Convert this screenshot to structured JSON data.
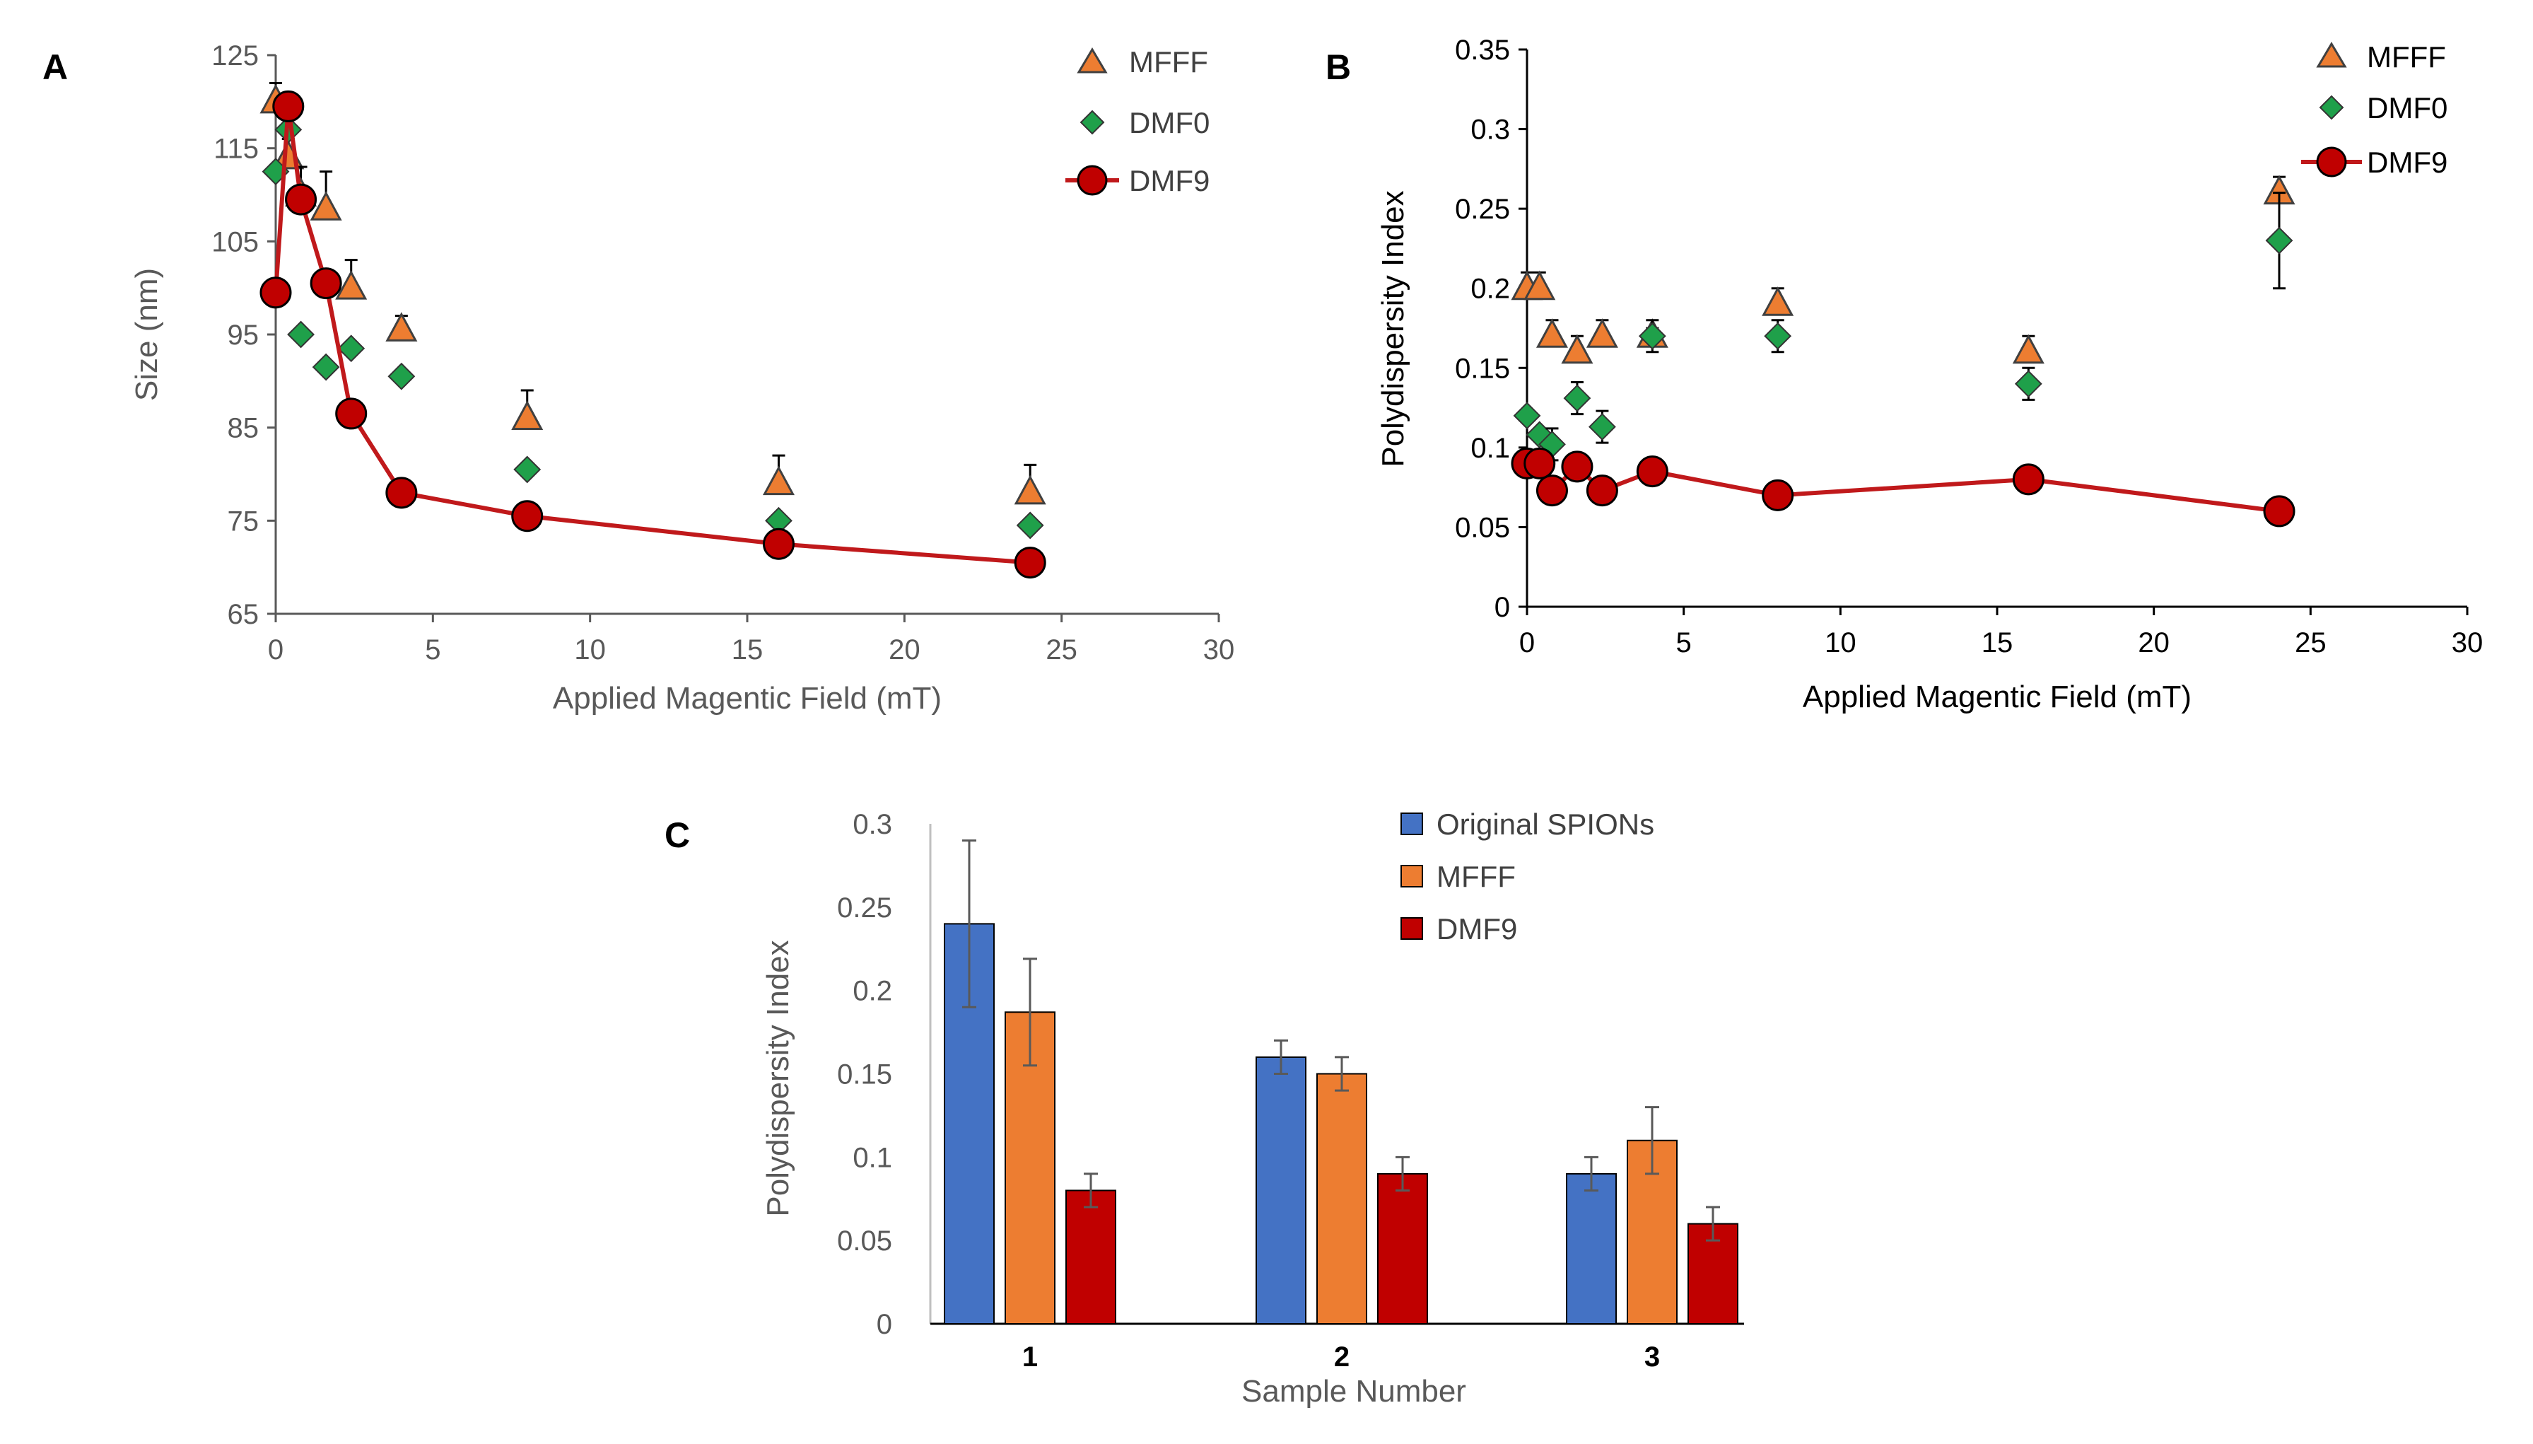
{
  "colors": {
    "mfff": "#ED7D31",
    "dmf0": "#1FA04A",
    "dmf9": "#C00000",
    "dmf9_line": "#C0191B",
    "original": "#4472C4"
  },
  "chart_data": [
    {
      "panel": "A",
      "type": "scatter",
      "xlabel": "Applied Magentic Field (mT)",
      "ylabel": "Size (nm)",
      "xlim": [
        0,
        30
      ],
      "ylim": [
        65,
        125
      ],
      "xticks": [
        "0",
        "5",
        "10",
        "15",
        "20",
        "25",
        "30"
      ],
      "yticks": [
        "65",
        "75",
        "85",
        "95",
        "105",
        "115",
        "125"
      ],
      "legend": [
        "MFFF",
        "DMF0",
        "DMF9"
      ],
      "legend_position": "top-right",
      "series": [
        {
          "name": "MFFF",
          "marker": "triangle",
          "line": false,
          "x": [
            0,
            0.4,
            0.8,
            1.6,
            2.4,
            4,
            8,
            16,
            24
          ],
          "y": [
            120,
            114,
            110,
            108.5,
            100,
            95.5,
            86,
            79,
            78
          ],
          "err": [
            2,
            2,
            3,
            4,
            3,
            1.5,
            3,
            3,
            3
          ]
        },
        {
          "name": "DMF0",
          "marker": "diamond",
          "line": false,
          "x": [
            0,
            0.4,
            0.8,
            1.6,
            2.4,
            4,
            8,
            16,
            24
          ],
          "y": [
            112.5,
            117,
            95,
            91.5,
            93.5,
            90.5,
            80.5,
            75,
            74.5
          ],
          "err": [
            0,
            0,
            0,
            0,
            0,
            0,
            0,
            0,
            0
          ]
        },
        {
          "name": "DMF9",
          "marker": "circle",
          "line": true,
          "x": [
            0,
            0.4,
            0.8,
            1.6,
            2.4,
            4,
            8,
            16,
            24
          ],
          "y": [
            99.5,
            119.5,
            109.5,
            100.5,
            86.5,
            78,
            75.5,
            72.5,
            70.5
          ],
          "err": [
            0,
            0,
            0,
            0,
            0,
            0,
            0,
            0,
            0
          ]
        }
      ]
    },
    {
      "panel": "B",
      "type": "scatter",
      "xlabel": "Applied Magentic Field (mT)",
      "ylabel": "Polydispersity Index",
      "xlim": [
        0,
        30
      ],
      "ylim": [
        0,
        0.35
      ],
      "xticks": [
        "0",
        "5",
        "10",
        "15",
        "20",
        "25",
        "30"
      ],
      "yticks": [
        "0",
        "0.05",
        "0.1",
        "0.15",
        "0.2",
        "0.25",
        "0.3",
        "0.35"
      ],
      "legend": [
        "MFFF",
        "DMF0",
        "DMF9"
      ],
      "legend_position": "top-right",
      "series": [
        {
          "name": "MFFF",
          "marker": "triangle",
          "line": false,
          "x": [
            0,
            0.4,
            0.8,
            1.6,
            2.4,
            4,
            8,
            16,
            24
          ],
          "y": [
            0.2,
            0.2,
            0.17,
            0.16,
            0.17,
            0.17,
            0.19,
            0.16,
            0.26
          ],
          "err": [
            0.01,
            0.01,
            0.01,
            0.01,
            0.01,
            0.005,
            0.01,
            0.01,
            0.01
          ]
        },
        {
          "name": "DMF0",
          "marker": "diamond",
          "line": false,
          "x": [
            0,
            0.4,
            0.8,
            1.6,
            2.4,
            4,
            8,
            16,
            24
          ],
          "y": [
            0.12,
            0.108,
            0.102,
            0.131,
            0.113,
            0.17,
            0.17,
            0.14,
            0.23
          ],
          "err": [
            0,
            0,
            0.01,
            0.01,
            0.01,
            0.01,
            0.01,
            0.01,
            0.03
          ]
        },
        {
          "name": "DMF9",
          "marker": "circle",
          "line": true,
          "x": [
            0,
            0.4,
            0.8,
            1.6,
            2.4,
            4,
            8,
            16,
            24
          ],
          "y": [
            0.09,
            0.09,
            0.073,
            0.088,
            0.073,
            0.085,
            0.07,
            0.08,
            0.06
          ],
          "err": [
            0,
            0,
            0,
            0,
            0,
            0,
            0,
            0,
            0
          ]
        }
      ]
    },
    {
      "panel": "C",
      "type": "bar",
      "xlabel": "Sample Number",
      "ylabel": "Polydispersity Index",
      "categories": [
        "1",
        "2",
        "3"
      ],
      "ylim": [
        0,
        0.3
      ],
      "yticks": [
        "0",
        "0.05",
        "0.1",
        "0.15",
        "0.2",
        "0.25",
        "0.3"
      ],
      "legend_position": "top-right",
      "series": [
        {
          "name": "Original SPIONs",
          "values": [
            0.24,
            0.16,
            0.09
          ],
          "err": [
            0.05,
            0.01,
            0.01
          ]
        },
        {
          "name": "MFFF",
          "values": [
            0.187,
            0.15,
            0.11
          ],
          "err": [
            0.032,
            0.01,
            0.02
          ]
        },
        {
          "name": "DMF9",
          "values": [
            0.08,
            0.09,
            0.06
          ],
          "err": [
            0.01,
            0.01,
            0.01
          ]
        }
      ]
    }
  ]
}
